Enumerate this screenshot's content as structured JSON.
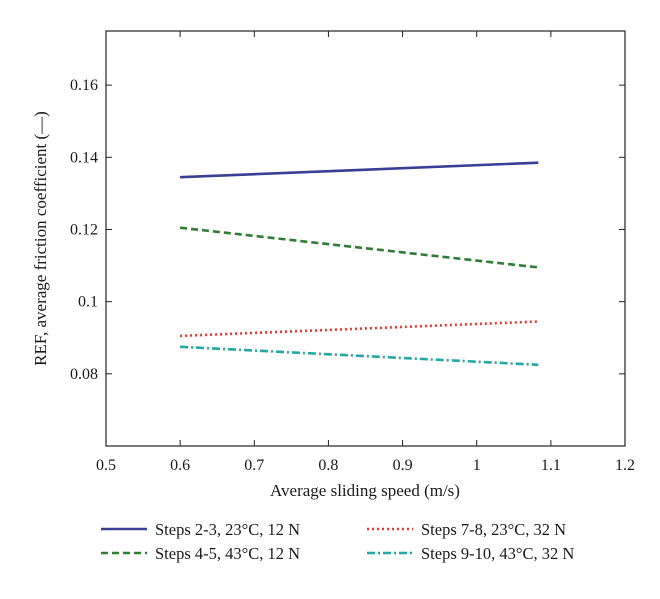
{
  "chart_data": {
    "type": "line",
    "title": "",
    "xlabel": "Average sliding speed (m/s)",
    "ylabel": "REF, average friction coefficient (—)",
    "xlim": [
      0.5,
      1.2
    ],
    "ylim": [
      0.06,
      0.175
    ],
    "xticks": [
      0.5,
      0.6,
      0.7,
      0.8,
      0.9,
      1,
      1.1,
      1.2
    ],
    "xtick_labels": [
      "0.5",
      "0.6",
      "0.7",
      "0.8",
      "0.9",
      "1",
      "1.1",
      "1.2"
    ],
    "yticks": [
      0.08,
      0.1,
      0.12,
      0.14,
      0.16
    ],
    "ytick_labels": [
      "0.08",
      "0.1",
      "0.12",
      "0.14",
      "0.16"
    ],
    "grid": false,
    "legend_position": "bottom",
    "series": [
      {
        "name": "Steps 2-3, 23°C, 12 N",
        "x": [
          0.6,
          1.083
        ],
        "y": [
          0.1345,
          0.1385
        ],
        "color": "#3a3f96",
        "style": "solid"
      },
      {
        "name": "Steps 4-5, 43°C, 12 N",
        "x": [
          0.6,
          1.083
        ],
        "y": [
          0.1205,
          0.1095
        ],
        "color": "#2e7d32",
        "style": "dashed"
      },
      {
        "name": "Steps 7-8, 23°C, 32 N",
        "x": [
          0.6,
          1.083
        ],
        "y": [
          0.0905,
          0.0945
        ],
        "color": "#e53935",
        "style": "dotted"
      },
      {
        "name": "Steps 9-10, 43°C, 32 N",
        "x": [
          0.6,
          1.083
        ],
        "y": [
          0.0875,
          0.0825
        ],
        "color": "#26a6a6",
        "style": "dashdot"
      }
    ]
  }
}
